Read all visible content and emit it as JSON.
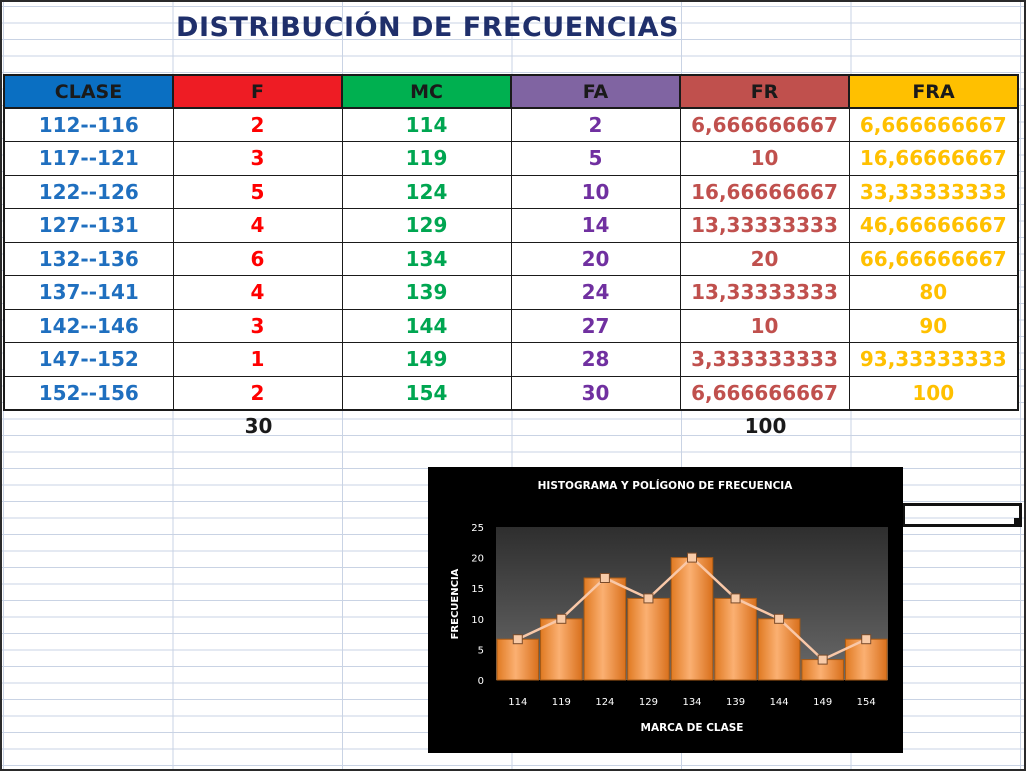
{
  "title": "DISTRIBUCIÓN DE FRECUENCIAS",
  "colors": {
    "header_backgrounds": [
      "#0a6fc2",
      "#ee1c24",
      "#00b050",
      "#8064a2",
      "#c0504d",
      "#ffc000"
    ],
    "column_text": [
      "#1f6fbf",
      "#ff0000",
      "#00a651",
      "#7030a0",
      "#c0504d",
      "#ffc000"
    ],
    "bar_fill": "#f79646",
    "polygon_line": "#f9c8a8"
  },
  "table": {
    "headers": [
      "CLASE",
      "F",
      "MC",
      "FA",
      "FR",
      "FRA"
    ],
    "rows": [
      [
        "112--116",
        "2",
        "114",
        "2",
        "6,666666667",
        "6,666666667"
      ],
      [
        "117--121",
        "3",
        "119",
        "5",
        "10",
        "16,66666667"
      ],
      [
        "122--126",
        "5",
        "124",
        "10",
        "16,66666667",
        "33,33333333"
      ],
      [
        "127--131",
        "4",
        "129",
        "14",
        "13,33333333",
        "46,66666667"
      ],
      [
        "132--136",
        "6",
        "134",
        "20",
        "20",
        "66,66666667"
      ],
      [
        "137--141",
        "4",
        "139",
        "24",
        "13,33333333",
        "80"
      ],
      [
        "142--146",
        "3",
        "144",
        "27",
        "10",
        "90"
      ],
      [
        "147--152",
        "1",
        "149",
        "28",
        "3,333333333",
        "93,33333333"
      ],
      [
        "152--156",
        "2",
        "154",
        "30",
        "6,666666667",
        "100"
      ]
    ],
    "totals": {
      "f": "30",
      "fr": "100"
    }
  },
  "chart_data": {
    "type": "bar",
    "title": "HISTOGRAMA Y POLÍGONO DE FRECUENCIA",
    "xlabel": "MARCA DE CLASE",
    "ylabel": "FRECUENCIA",
    "categories": [
      "114",
      "119",
      "124",
      "129",
      "134",
      "139",
      "144",
      "149",
      "154"
    ],
    "values": [
      6.666666667,
      10,
      16.66666667,
      13.33333333,
      20,
      13.33333333,
      10,
      3.333333333,
      6.666666667
    ],
    "overlay": "line",
    "ylim": [
      0,
      25
    ],
    "yticks": [
      "0",
      "5",
      "10",
      "15",
      "20",
      "25"
    ],
    "legend": "none"
  }
}
